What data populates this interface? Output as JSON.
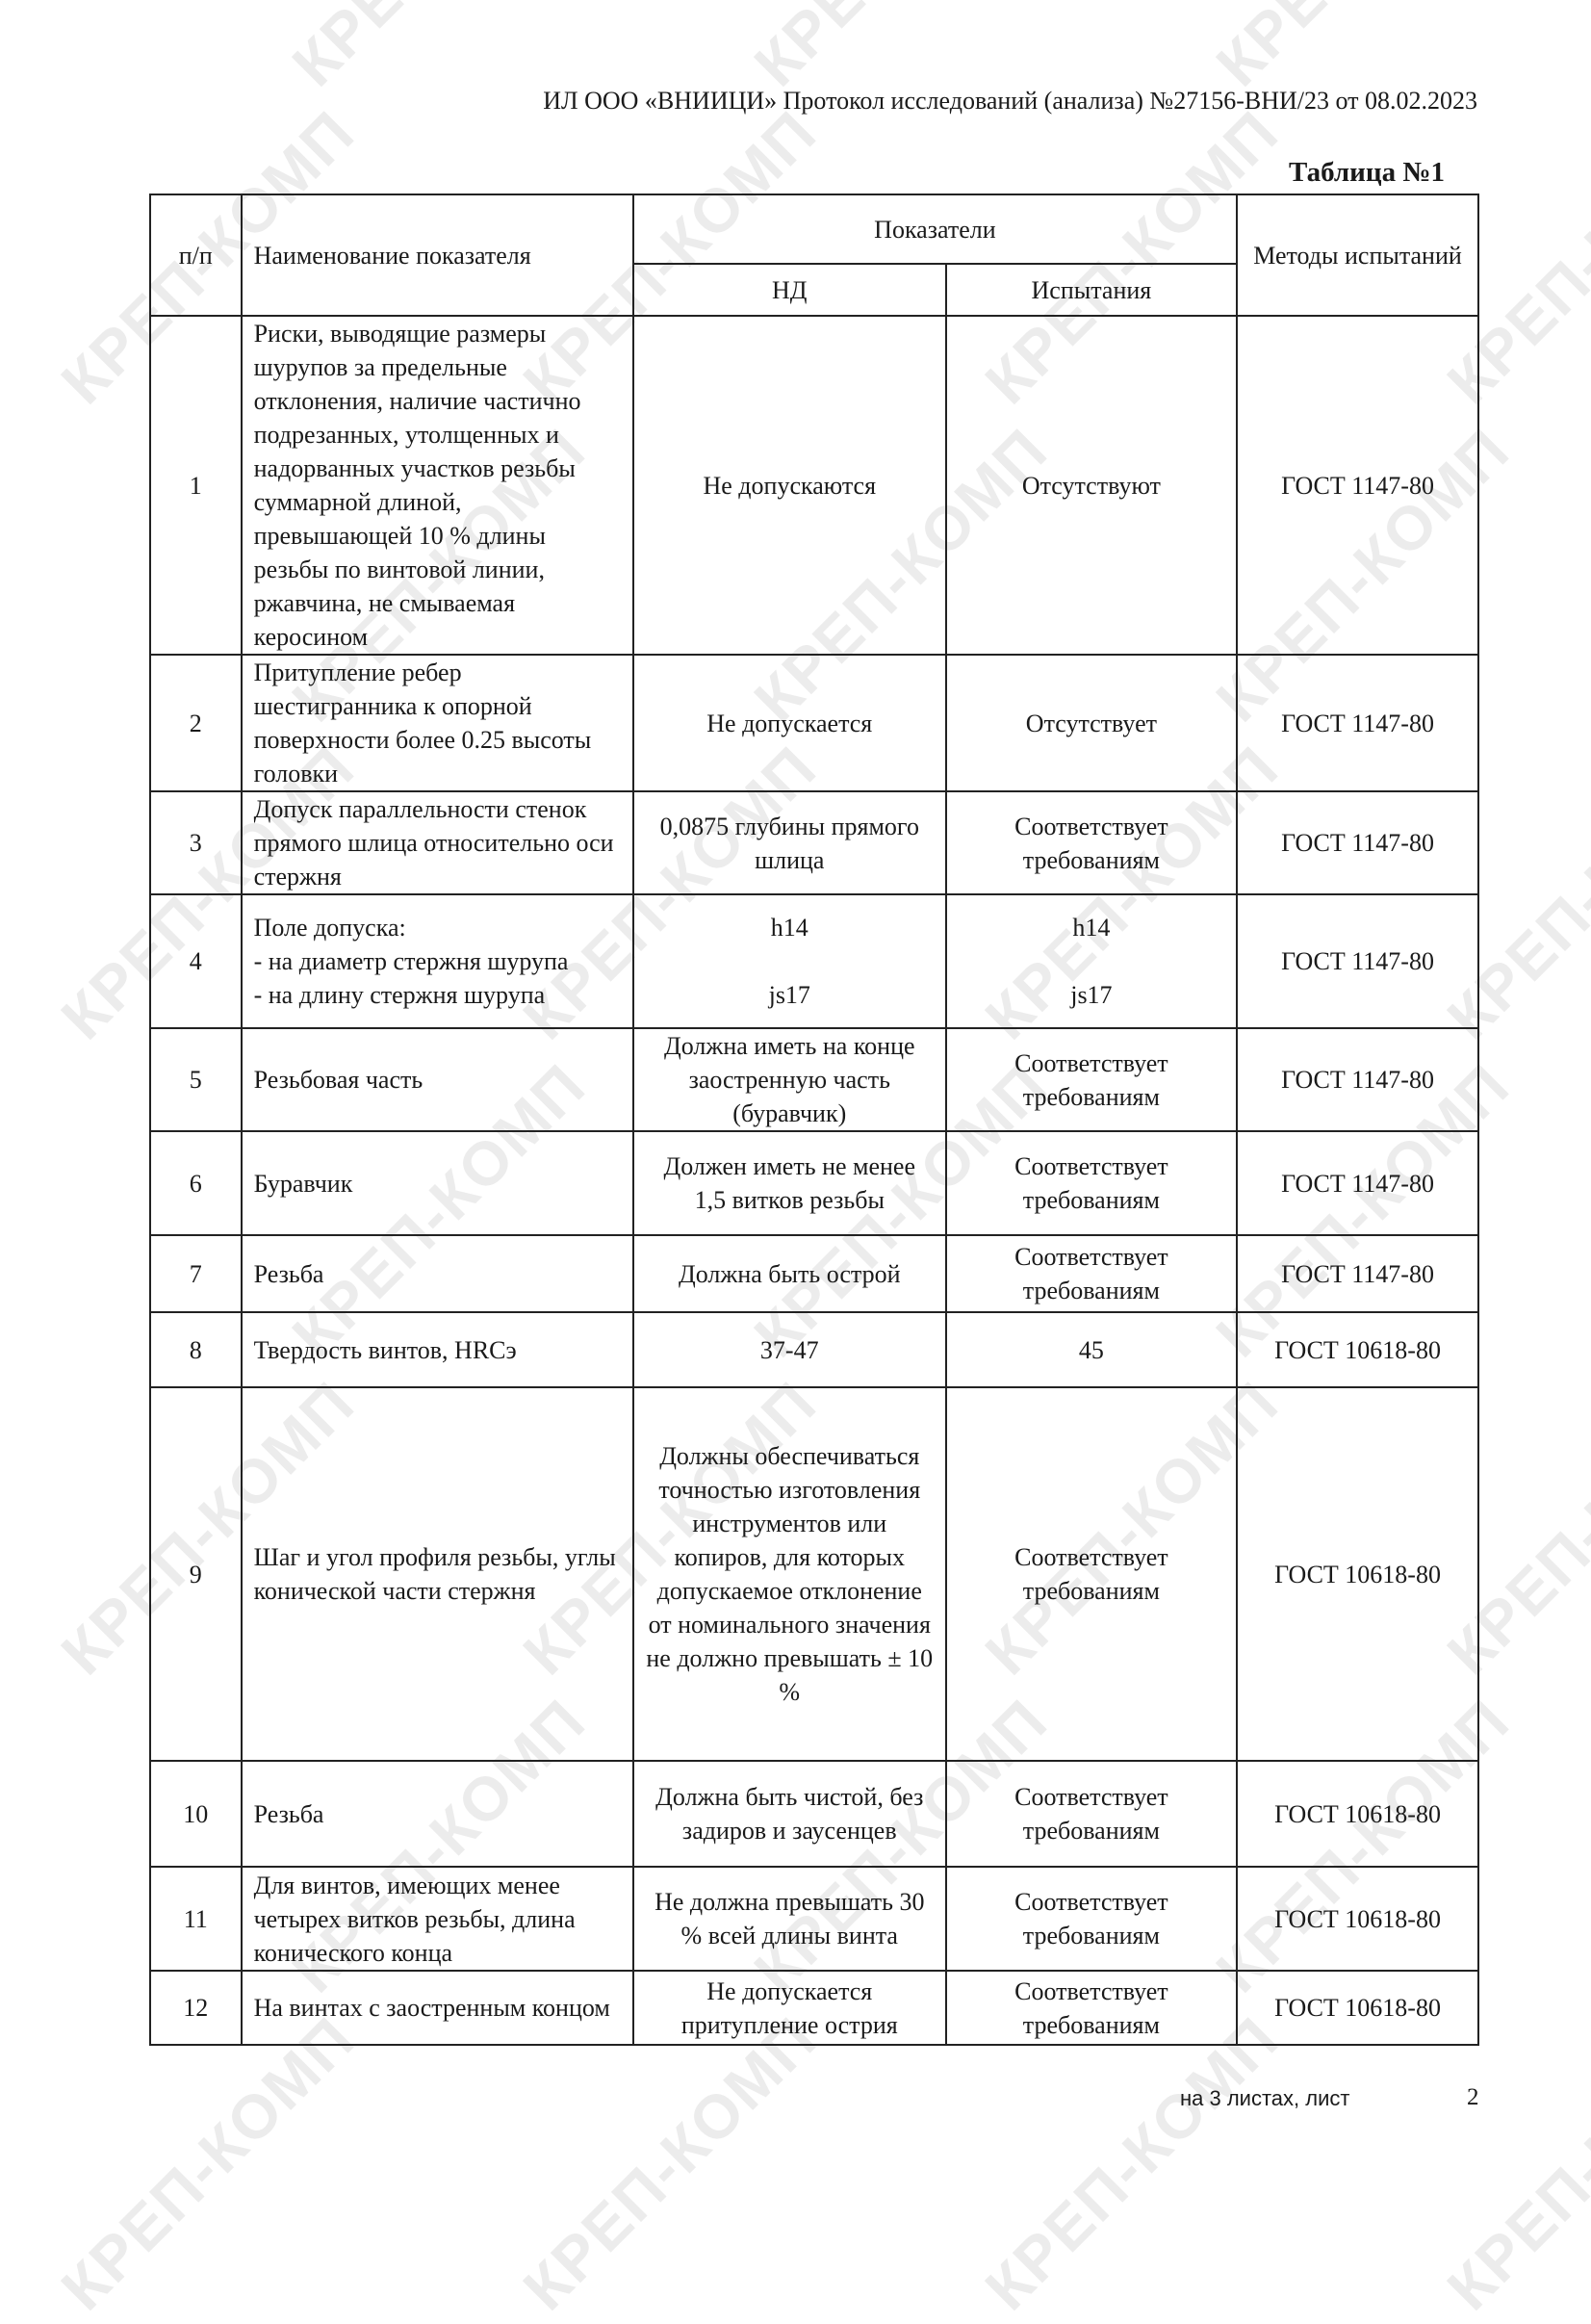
{
  "watermark": "КРЕП-КОМП",
  "header": {
    "text": "ИЛ ООО «ВНИИЦИ» Протокол исследований (анализа)  №27156-ВНИ/23 от  08.02.2023"
  },
  "table_title": "Таблица №1",
  "table": {
    "columns": {
      "num": "п/п",
      "name": "Наименование показателя",
      "indicators": "Показатели",
      "nd": "НД",
      "test": "Испытания",
      "methods": "Методы испытаний"
    },
    "rows": [
      {
        "n": "1",
        "name": "Риски, выводящие размеры шурупов за предельные отклонения, наличие частично подрезанных, утолщенных и надорванных участков резьбы суммарной длиной, превышающей 10 % длины резьбы по винтовой линии, ржавчина, не смываемая керосином",
        "nd": "Не допускаются",
        "test": "Отсутствуют",
        "method": "ГОСТ 1147-80"
      },
      {
        "n": "2",
        "name": "Притупление ребер шестигранника к опорной поверхности более 0.25 высоты головки",
        "nd": "Не допускается",
        "test": "Отсутствует",
        "method": "ГОСТ 1147-80"
      },
      {
        "n": "3",
        "name": "Допуск параллельности стенок прямого шлица относительно оси стержня",
        "nd": "0,0875 глубины прямого шлица",
        "test": "Соответствует требованиям",
        "method": "ГОСТ 1147-80"
      },
      {
        "n": "4",
        "name": "Поле допуска:\n- на диаметр стержня шурупа\n- на длину стержня шурупа",
        "nd": "h14\n\njs17",
        "test": "h14\n\njs17",
        "method": "ГОСТ 1147-80"
      },
      {
        "n": "5",
        "name": "Резьбовая часть",
        "nd": "Должна иметь на конце заостренную часть (буравчик)",
        "test": "Соответствует требованиям",
        "method": "ГОСТ 1147-80"
      },
      {
        "n": "6",
        "name": "Буравчик",
        "nd": "Должен иметь не менее 1,5 витков резьбы",
        "test": "Соответствует требованиям",
        "method": "ГОСТ 1147-80"
      },
      {
        "n": "7",
        "name": "Резьба",
        "nd": "Должна быть острой",
        "test": "Соответствует требованиям",
        "method": "ГОСТ 1147-80"
      },
      {
        "n": "8",
        "name": "Твердость винтов, HRCэ",
        "nd": "37-47",
        "test": "45",
        "method": "ГОСТ 10618-80"
      },
      {
        "n": "9",
        "name": "Шаг и угол профиля резьбы, углы конической части стержня",
        "nd": "Должны обеспечиваться точностью изготовления инструментов или копиров, для которых допускаемое отклонение от номинального значения не должно превышать ± 10 %",
        "test": "Соответствует требованиям",
        "method": "ГОСТ 10618-80"
      },
      {
        "n": "10",
        "name": "Резьба",
        "nd": "Должна быть чистой, без задиров и заусенцев",
        "test": "Соответствует требованиям",
        "method": "ГОСТ 10618-80"
      },
      {
        "n": "11",
        "name": "Для винтов, имеющих менее четырех витков резьбы, длина конического конца",
        "nd": "Не должна превышать 30 % всей длины винта",
        "test": "Соответствует требованиям",
        "method": "ГОСТ 10618-80"
      },
      {
        "n": "12",
        "name": "На винтах с заостренным концом",
        "nd": "Не допускается притупление острия",
        "test": "Соответствует требованиям",
        "method": "ГОСТ 10618-80"
      }
    ]
  },
  "footer": {
    "sheets": "на 3  листах, лист",
    "page": "2"
  }
}
